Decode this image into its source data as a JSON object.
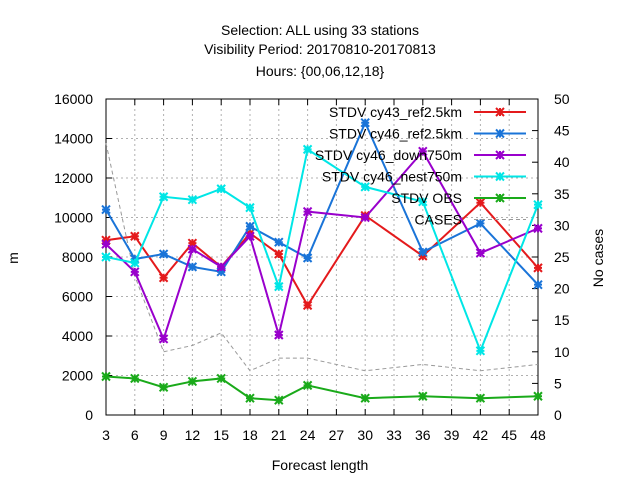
{
  "chart_data": {
    "type": "line",
    "title_lines": [
      "Selection: ALL using    33 stations",
      "Visibility   Period: 20170810-20170813",
      "Hours: {00,06,12,18}"
    ],
    "xlabel": "Forecast length",
    "ylabel": "m",
    "y2label": "No cases",
    "x": [
      3,
      6,
      9,
      12,
      15,
      18,
      21,
      24,
      30,
      36,
      42,
      48
    ],
    "xlim": [
      3,
      48
    ],
    "xticks": [
      3,
      6,
      9,
      12,
      15,
      18,
      21,
      24,
      27,
      30,
      33,
      36,
      39,
      42,
      45,
      48
    ],
    "ylim": [
      0,
      16000
    ],
    "yticks": [
      0,
      2000,
      4000,
      6000,
      8000,
      10000,
      12000,
      14000,
      16000
    ],
    "y2lim": [
      0,
      50
    ],
    "y2ticks": [
      0,
      5,
      10,
      15,
      20,
      25,
      30,
      35,
      40,
      45,
      50
    ],
    "grid": true,
    "legend_position": "top-right",
    "series": [
      {
        "name": "STDV cy43_ref2.5km",
        "color": "#e41a1c",
        "axis": "y",
        "marker": "x",
        "values": [
          8850,
          9050,
          6950,
          8700,
          7500,
          9200,
          8150,
          5550,
          10100,
          8050,
          10750,
          7450
        ]
      },
      {
        "name": "STDV cy46_ref2.5km",
        "color": "#1a74d8",
        "axis": "y",
        "marker": "x",
        "values": [
          10400,
          7900,
          8150,
          7500,
          7250,
          9550,
          8750,
          7950,
          14800,
          8250,
          9700,
          6600
        ]
      },
      {
        "name": "STDV cy46_down750m",
        "color": "#9900cc",
        "axis": "y",
        "marker": "x",
        "values": [
          8650,
          7250,
          3850,
          8400,
          7500,
          9050,
          4050,
          10300,
          10000,
          13350,
          8200,
          9450
        ]
      },
      {
        "name": "STDV cy46_nest750m",
        "color": "#00e6e6",
        "axis": "y",
        "marker": "x",
        "values": [
          8000,
          7700,
          11050,
          10900,
          11450,
          10500,
          6500,
          13450,
          11550,
          10800,
          3250,
          10650
        ]
      },
      {
        "name": "STDV OBS",
        "color": "#1aaa1a",
        "axis": "y",
        "marker": "x",
        "values": [
          1950,
          1850,
          1400,
          1700,
          1850,
          850,
          750,
          1500,
          850,
          950,
          850,
          950
        ]
      },
      {
        "name": "CASES",
        "color": "#999999",
        "axis": "y2",
        "dashed": true,
        "values": [
          43,
          22,
          10,
          11,
          13,
          7,
          9,
          9,
          7,
          8,
          7,
          8
        ]
      }
    ]
  }
}
